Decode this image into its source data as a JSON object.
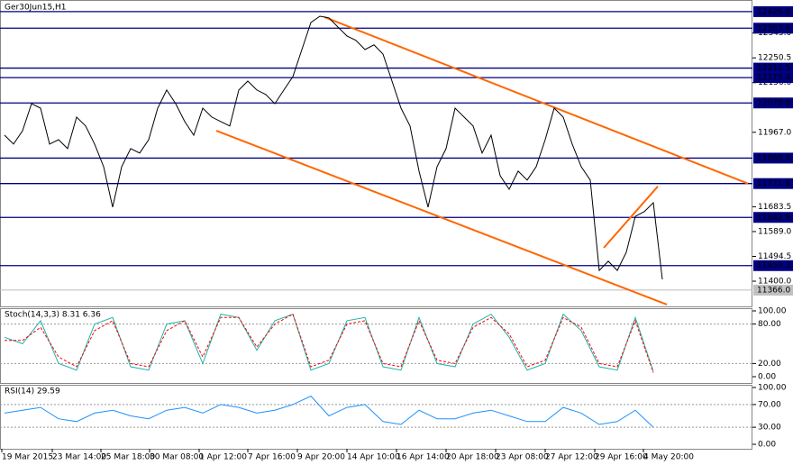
{
  "chart_data": [
    {
      "type": "line",
      "title": "Ger30Jun15,H1",
      "series": [
        {
          "color": "#000000",
          "values": [
            11956,
            11922,
            11973,
            12076,
            12059,
            11922,
            11939,
            11905,
            12025,
            11991,
            11922,
            11836,
            11682,
            11836,
            11905,
            11888,
            11939,
            12059,
            12128,
            12076,
            12008,
            11956,
            12059,
            12025,
            12008,
            11991,
            12128,
            12162,
            12128,
            12111,
            12076,
            12128,
            12179,
            12282,
            12385,
            12409,
            12403,
            12368,
            12334,
            12317,
            12282,
            12300,
            12265,
            12162,
            12059,
            11991,
            11819,
            11682,
            11836,
            11905,
            12059,
            12025,
            11991,
            11888,
            11956,
            11802,
            11750,
            11819,
            11785,
            11836,
            11939,
            12059,
            12025,
            11922,
            11836,
            11785,
            11441,
            11476,
            11441,
            11510,
            11647,
            11665,
            11699,
            11407
          ]
        }
      ],
      "xlim": [
        -0.5,
        83
      ],
      "xticks": [
        {
          "value": -0.3,
          "label": "19 Mar 2015"
        },
        {
          "value": 5.3,
          "label": "23 Mar 14:00"
        },
        {
          "value": 10.7,
          "label": "25 Mar 18:00"
        },
        {
          "value": 16.1,
          "label": "30 Mar 08:00"
        },
        {
          "value": 21.6,
          "label": "1 Apr 12:00"
        },
        {
          "value": 27,
          "label": "7 Apr 16:00"
        },
        {
          "value": 32.5,
          "label": "9 Apr 20:00"
        },
        {
          "value": 38,
          "label": "14 Apr 10:00"
        },
        {
          "value": 43.5,
          "label": "16 Apr 14:00"
        },
        {
          "value": 49,
          "label": "20 Apr 18:00"
        },
        {
          "value": 54.5,
          "label": "23 Apr 08:00"
        },
        {
          "value": 60,
          "label": "27 Apr 12:00"
        },
        {
          "value": 65.5,
          "label": "29 Apr 16:00"
        },
        {
          "value": 70.9,
          "label": "4 May 20:00"
        }
      ],
      "ylim": [
        11304,
        12464
      ],
      "yticks": [
        {
          "value": 12345,
          "label": "12345.0"
        },
        {
          "value": 12250.5,
          "label": "12250.5"
        },
        {
          "value": 12156,
          "label": "12156.0"
        },
        {
          "value": 11967,
          "label": "11967.0"
        },
        {
          "value": 11683.5,
          "label": "11683.5"
        },
        {
          "value": 11589,
          "label": "11589.0"
        },
        {
          "value": 11494.5,
          "label": "11494.5"
        },
        {
          "value": 11400,
          "label": "11400.0"
        }
      ],
      "levels": [
        12426.6,
        12363.6,
        12211.5,
        12175.4,
        12078.8,
        11868.8,
        11771.8,
        11642.9,
        11459.3
      ],
      "level_color": "#000080",
      "last_price": {
        "value": 11366,
        "label": "11366.0"
      },
      "trendlines": [
        [
          [
            35.5,
            12406
          ],
          [
            82.5,
            11771.8
          ]
        ],
        [
          [
            23.5,
            11973
          ],
          [
            73.5,
            11311
          ]
        ],
        [
          [
            66.5,
            11527
          ],
          [
            72.5,
            11761
          ]
        ]
      ],
      "trendline_color": "#ff6600"
    },
    {
      "type": "line",
      "title": "Stoch(14,3,3) 8.31 6.36",
      "series": [
        {
          "color": "#20b2aa",
          "values": [
            60,
            50,
            85,
            20,
            10,
            80,
            90,
            15,
            10,
            80,
            85,
            20,
            95,
            90,
            40,
            85,
            95,
            10,
            20,
            85,
            90,
            15,
            10,
            90,
            20,
            15,
            80,
            95,
            60,
            10,
            20,
            95,
            70,
            15,
            10,
            90,
            8
          ]
        },
        {
          "color": "#ff0000",
          "dashed": true,
          "values": [
            55,
            55,
            75,
            30,
            15,
            70,
            85,
            20,
            15,
            70,
            85,
            30,
            90,
            90,
            45,
            80,
            95,
            15,
            25,
            80,
            85,
            20,
            15,
            85,
            25,
            20,
            75,
            90,
            65,
            15,
            25,
            90,
            75,
            20,
            15,
            85,
            6
          ]
        }
      ],
      "ylim": [
        -9.6,
        104.1
      ],
      "yticks": [
        {
          "value": 100,
          "label": "100.00"
        },
        {
          "value": 80,
          "label": "80.00"
        },
        {
          "value": 20,
          "label": "20.00"
        },
        {
          "value": 0,
          "label": "0.00"
        }
      ],
      "levels": [
        80,
        20
      ]
    },
    {
      "type": "line",
      "title": "RSI(14) 29.59",
      "series": [
        {
          "color": "#1e90ff",
          "values": [
            55,
            60,
            65,
            45,
            40,
            55,
            60,
            50,
            45,
            60,
            65,
            55,
            70,
            65,
            55,
            60,
            70,
            85,
            50,
            65,
            70,
            40,
            35,
            60,
            45,
            45,
            55,
            60,
            50,
            40,
            40,
            65,
            55,
            35,
            40,
            60,
            30
          ]
        }
      ],
      "ylim": [
        -7.9,
        104.8
      ],
      "yticks": [
        {
          "value": 100,
          "label": "100.00"
        },
        {
          "value": 70,
          "label": "70.00"
        },
        {
          "value": 30,
          "label": "30.00"
        },
        {
          "value": 0,
          "label": "0.00"
        }
      ],
      "levels": [
        70,
        30
      ]
    }
  ]
}
